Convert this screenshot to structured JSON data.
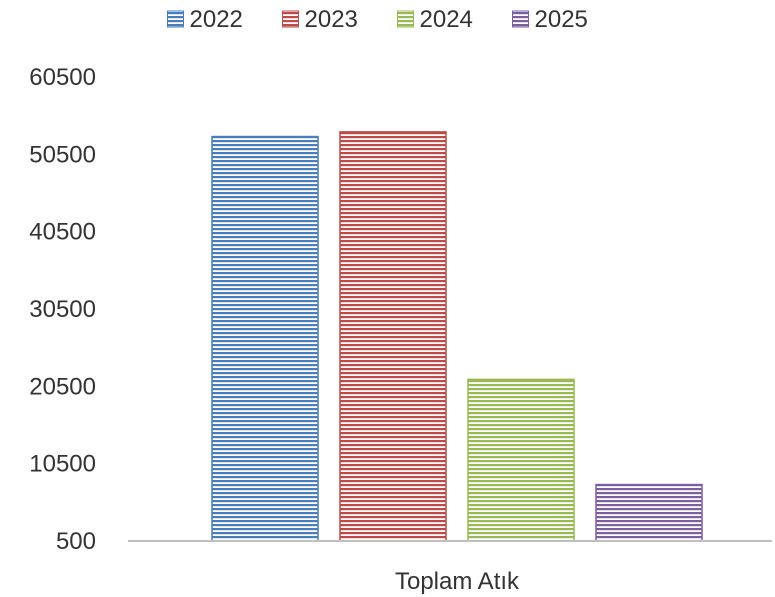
{
  "chart_data": {
    "type": "bar",
    "categories": [
      "Toplam Atık"
    ],
    "series": [
      {
        "name": "2022",
        "values": [
          52800
        ],
        "color": "#4a7ebb"
      },
      {
        "name": "2023",
        "values": [
          53400
        ],
        "color": "#be4b48"
      },
      {
        "name": "2024",
        "values": [
          21400
        ],
        "color": "#98b954"
      },
      {
        "name": "2025",
        "values": [
          7800
        ],
        "color": "#7d5fa0"
      }
    ],
    "y_ticks": [
      "500",
      "10500",
      "20500",
      "30500",
      "40500",
      "50500",
      "60500"
    ],
    "ylim": [
      500,
      60500
    ],
    "grid": false,
    "legend_position": "top"
  }
}
